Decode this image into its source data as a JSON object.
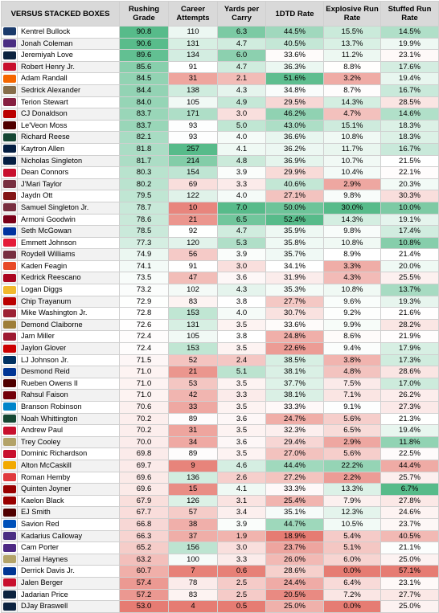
{
  "colors": {
    "high": "#57bb8a",
    "mid": "#ffffff",
    "low": "#e67c73",
    "header_bg": "#d9d9d9"
  },
  "chart_data": {
    "type": "table",
    "title": "VERSUS STACKED BOXES",
    "columns": [
      "Rushing Grade",
      "Career Attempts",
      "Yards per Carry",
      "1DTD Rate",
      "Explosive Run Rate",
      "Stuffed Run Rate"
    ],
    "rows": [
      {
        "name": "Kentrel Bullock",
        "logo": "#1a3a6b",
        "logo_icon": "team-logo-icon",
        "values": [
          "90.8",
          "110",
          "6.3",
          "44.5%",
          "15.5%",
          "14.5%"
        ]
      },
      {
        "name": "Jonah Coleman",
        "logo": "#4b2e83",
        "logo_icon": "team-logo-icon",
        "values": [
          "90.6",
          "131",
          "4.7",
          "40.5%",
          "13.7%",
          "19.9%"
        ]
      },
      {
        "name": "Jeremiyah Love",
        "logo": "#0c2340",
        "logo_icon": "team-logo-icon",
        "values": [
          "89.6",
          "134",
          "6.0",
          "33.6%",
          "11.2%",
          "23.1%"
        ]
      },
      {
        "name": "Robert Henry Jr.",
        "logo": "#c8102e",
        "logo_icon": "team-logo-icon",
        "values": [
          "85.6",
          "91",
          "4.7",
          "36.3%",
          "8.8%",
          "17.6%"
        ]
      },
      {
        "name": "Adam Randall",
        "logo": "#f56600",
        "logo_icon": "team-logo-icon",
        "values": [
          "84.5",
          "31",
          "2.1",
          "51.6%",
          "3.2%",
          "19.4%"
        ]
      },
      {
        "name": "Sedrick Alexander",
        "logo": "#866d4b",
        "logo_icon": "team-logo-icon",
        "values": [
          "84.4",
          "138",
          "4.3",
          "34.8%",
          "8.7%",
          "16.7%"
        ]
      },
      {
        "name": "Terion Stewart",
        "logo": "#861f41",
        "logo_icon": "team-logo-icon",
        "values": [
          "84.0",
          "105",
          "4.9",
          "29.5%",
          "14.3%",
          "28.5%"
        ]
      },
      {
        "name": "CJ Donaldson",
        "logo": "#bb0000",
        "logo_icon": "team-logo-icon",
        "values": [
          "83.7",
          "171",
          "3.0",
          "46.2%",
          "4.7%",
          "14.6%"
        ]
      },
      {
        "name": "Le'Veon Moss",
        "logo": "#500000",
        "logo_icon": "team-logo-icon",
        "values": [
          "83.7",
          "93",
          "5.0",
          "43.0%",
          "15.1%",
          "18.3%"
        ]
      },
      {
        "name": "Richard Reese",
        "logo": "#154734",
        "logo_icon": "team-logo-icon",
        "values": [
          "82.1",
          "93",
          "4.0",
          "36.6%",
          "10.8%",
          "18.3%"
        ]
      },
      {
        "name": "Kaytron Allen",
        "logo": "#041e42",
        "logo_icon": "team-logo-icon",
        "values": [
          "81.8",
          "257",
          "4.1",
          "36.2%",
          "11.7%",
          "16.7%"
        ]
      },
      {
        "name": "Nicholas Singleton",
        "logo": "#041e42",
        "logo_icon": "team-logo-icon",
        "values": [
          "81.7",
          "214",
          "4.8",
          "36.9%",
          "10.7%",
          "21.5%"
        ]
      },
      {
        "name": "Dean Connors",
        "logo": "#c8102e",
        "logo_icon": "team-logo-icon",
        "values": [
          "80.3",
          "154",
          "3.9",
          "29.9%",
          "10.4%",
          "22.1%"
        ]
      },
      {
        "name": "J'Mari Taylor",
        "logo": "#782f40",
        "logo_icon": "team-logo-icon",
        "values": [
          "80.2",
          "69",
          "3.3",
          "40.6%",
          "2.9%",
          "20.3%"
        ]
      },
      {
        "name": "Jaydn Ott",
        "logo": "#841617",
        "logo_icon": "team-logo-icon",
        "values": [
          "79.5",
          "122",
          "4.0",
          "27.1%",
          "9.8%",
          "30.3%"
        ]
      },
      {
        "name": "Samuel Singleton Jr.",
        "logo": "#782f40",
        "logo_icon": "team-logo-icon",
        "values": [
          "78.7",
          "10",
          "7.0",
          "50.0%",
          "30.0%",
          "10.0%"
        ]
      },
      {
        "name": "Armoni Goodwin",
        "logo": "#7a0019",
        "logo_icon": "team-logo-icon",
        "values": [
          "78.6",
          "21",
          "6.5",
          "52.4%",
          "14.3%",
          "19.1%"
        ]
      },
      {
        "name": "Seth McGowan",
        "logo": "#0033a0",
        "logo_icon": "team-logo-icon",
        "values": [
          "78.5",
          "92",
          "4.7",
          "35.9%",
          "9.8%",
          "17.4%"
        ]
      },
      {
        "name": "Emmett Johnson",
        "logo": "#e41c38",
        "logo_icon": "team-logo-icon",
        "values": [
          "77.3",
          "120",
          "5.3",
          "35.8%",
          "10.8%",
          "10.8%"
        ]
      },
      {
        "name": "Roydell Williams",
        "logo": "#782f40",
        "logo_icon": "team-logo-icon",
        "values": [
          "74.9",
          "56",
          "3.9",
          "35.7%",
          "8.9%",
          "21.4%"
        ]
      },
      {
        "name": "Kaden Feagin",
        "logo": "#e84a27",
        "logo_icon": "team-logo-icon",
        "values": [
          "74.1",
          "91",
          "3.0",
          "34.1%",
          "3.3%",
          "20.0%"
        ]
      },
      {
        "name": "Kedrick Reescano",
        "logo": "#ab0520",
        "logo_icon": "team-logo-icon",
        "values": [
          "73.5",
          "47",
          "3.6",
          "31.9%",
          "4.3%",
          "25.5%"
        ]
      },
      {
        "name": "Logan Diggs",
        "logo": "#f1b82d",
        "logo_icon": "team-logo-icon",
        "values": [
          "73.2",
          "102",
          "4.3",
          "35.3%",
          "10.8%",
          "13.7%"
        ]
      },
      {
        "name": "Chip Trayanum",
        "logo": "#bb0000",
        "logo_icon": "team-logo-icon",
        "values": [
          "72.9",
          "83",
          "3.8",
          "27.7%",
          "9.6%",
          "19.3%"
        ]
      },
      {
        "name": "Mike Washington Jr.",
        "logo": "#9d2235",
        "logo_icon": "team-logo-icon",
        "values": [
          "72.8",
          "153",
          "4.0",
          "30.7%",
          "9.2%",
          "21.6%"
        ]
      },
      {
        "name": "Demond Claiborne",
        "logo": "#9e7e38",
        "logo_icon": "team-logo-icon",
        "values": [
          "72.6",
          "131",
          "3.5",
          "33.6%",
          "9.9%",
          "28.2%"
        ]
      },
      {
        "name": "Jam Miller",
        "logo": "#9e1b32",
        "logo_icon": "team-logo-icon",
        "values": [
          "72.4",
          "105",
          "3.8",
          "24.8%",
          "8.6%",
          "21.9%"
        ]
      },
      {
        "name": "Jaylon Glover",
        "logo": "#cc0000",
        "logo_icon": "team-logo-icon",
        "values": [
          "72.4",
          "153",
          "3.5",
          "22.6%",
          "9.4%",
          "17.9%"
        ]
      },
      {
        "name": "LJ Johnson Jr.",
        "logo": "#003262",
        "logo_icon": "team-logo-icon",
        "values": [
          "71.5",
          "52",
          "2.4",
          "38.5%",
          "3.8%",
          "17.3%"
        ]
      },
      {
        "name": "Desmond Reid",
        "logo": "#003594",
        "logo_icon": "team-logo-icon",
        "values": [
          "71.0",
          "21",
          "5.1",
          "38.1%",
          "4.8%",
          "28.6%"
        ]
      },
      {
        "name": "Rueben Owens II",
        "logo": "#500000",
        "logo_icon": "team-logo-icon",
        "values": [
          "71.0",
          "53",
          "3.5",
          "37.7%",
          "7.5%",
          "17.0%"
        ]
      },
      {
        "name": "Rahsul Faison",
        "logo": "#73000a",
        "logo_icon": "team-logo-icon",
        "values": [
          "71.0",
          "42",
          "3.3",
          "38.1%",
          "7.1%",
          "26.2%"
        ]
      },
      {
        "name": "Branson Robinson",
        "logo": "#0085ca",
        "logo_icon": "team-logo-icon",
        "values": [
          "70.6",
          "33",
          "3.5",
          "33.3%",
          "9.1%",
          "27.3%"
        ]
      },
      {
        "name": "Noah Whittington",
        "logo": "#154733",
        "logo_icon": "team-logo-icon",
        "values": [
          "70.2",
          "89",
          "3.6",
          "24.7%",
          "5.6%",
          "21.3%"
        ]
      },
      {
        "name": "Andrew Paul",
        "logo": "#c8102e",
        "logo_icon": "team-logo-icon",
        "values": [
          "70.2",
          "31",
          "3.5",
          "32.3%",
          "6.5%",
          "19.4%"
        ]
      },
      {
        "name": "Trey Cooley",
        "logo": "#b3a369",
        "logo_icon": "team-logo-icon",
        "values": [
          "70.0",
          "34",
          "3.6",
          "29.4%",
          "2.9%",
          "11.8%"
        ]
      },
      {
        "name": "Dominic Richardson",
        "logo": "#c8102e",
        "logo_icon": "team-logo-icon",
        "values": [
          "69.8",
          "89",
          "3.5",
          "27.0%",
          "5.6%",
          "22.5%"
        ]
      },
      {
        "name": "Alton McCaskill",
        "logo": "#f2a900",
        "logo_icon": "team-logo-icon",
        "values": [
          "69.7",
          "9",
          "4.6",
          "44.4%",
          "22.2%",
          "44.4%"
        ]
      },
      {
        "name": "Roman Hemby",
        "logo": "#e03a3e",
        "logo_icon": "team-logo-icon",
        "values": [
          "69.6",
          "136",
          "2.6",
          "27.2%",
          "2.2%",
          "25.7%"
        ]
      },
      {
        "name": "Quinten Joyner",
        "logo": "#990000",
        "logo_icon": "team-logo-icon",
        "values": [
          "69.6",
          "15",
          "4.1",
          "33.3%",
          "13.3%",
          "6.7%"
        ]
      },
      {
        "name": "Kaelon Black",
        "logo": "#990000",
        "logo_icon": "team-logo-icon",
        "values": [
          "67.9",
          "126",
          "3.1",
          "25.4%",
          "7.9%",
          "27.8%"
        ]
      },
      {
        "name": "EJ Smith",
        "logo": "#500000",
        "logo_icon": "team-logo-icon",
        "values": [
          "67.7",
          "57",
          "3.4",
          "35.1%",
          "12.3%",
          "24.6%"
        ]
      },
      {
        "name": "Savion Red",
        "logo": "#0051ba",
        "logo_icon": "team-logo-icon",
        "values": [
          "66.8",
          "38",
          "3.9",
          "44.7%",
          "10.5%",
          "23.7%"
        ]
      },
      {
        "name": "Kadarius Calloway",
        "logo": "#4b2e83",
        "logo_icon": "team-logo-icon",
        "values": [
          "66.3",
          "37",
          "1.9",
          "18.9%",
          "5.4%",
          "40.5%"
        ]
      },
      {
        "name": "Cam Porter",
        "logo": "#4e2a84",
        "logo_icon": "team-logo-icon",
        "values": [
          "65.2",
          "156",
          "3.0",
          "23.7%",
          "5.1%",
          "21.1%"
        ]
      },
      {
        "name": "Jamal Haynes",
        "logo": "#b3a369",
        "logo_icon": "team-logo-icon",
        "values": [
          "63.2",
          "100",
          "3.3",
          "26.0%",
          "6.0%",
          "25.0%"
        ]
      },
      {
        "name": "Derrick Davis Jr.",
        "logo": "#003594",
        "logo_icon": "team-logo-icon",
        "values": [
          "60.7",
          "7",
          "0.6",
          "28.6%",
          "0.0%",
          "57.1%"
        ]
      },
      {
        "name": "Jalen Berger",
        "logo": "#c8102e",
        "logo_icon": "team-logo-icon",
        "values": [
          "57.4",
          "78",
          "2.5",
          "24.4%",
          "6.4%",
          "23.1%"
        ]
      },
      {
        "name": "Jadarian Price",
        "logo": "#0c2340",
        "logo_icon": "team-logo-icon",
        "values": [
          "57.2",
          "83",
          "2.5",
          "20.5%",
          "7.2%",
          "27.7%"
        ]
      },
      {
        "name": "DJay Braswell",
        "logo": "#0c2340",
        "logo_icon": "team-logo-icon",
        "values": [
          "53.0",
          "4",
          "0.5",
          "25.0%",
          "0.0%",
          "25.0%"
        ]
      }
    ]
  }
}
